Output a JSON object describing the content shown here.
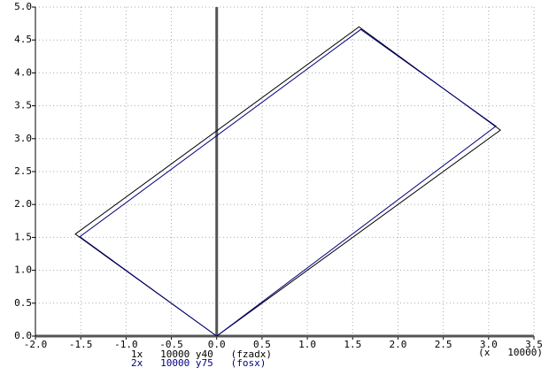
{
  "chart_data": {
    "type": "line",
    "x_label": "(x   10000)",
    "xlim": [
      -2.0,
      3.5
    ],
    "ylim": [
      0,
      5.0
    ],
    "xticks": [
      {
        "value": -2,
        "label": "-2.0"
      },
      -1.5,
      {
        "value": -1,
        "label": "-1.0"
      },
      -0.5,
      {
        "value": 0,
        "label": "0.0"
      },
      0.5,
      {
        "value": 1,
        "label": "1.0"
      },
      1.5,
      {
        "value": 2,
        "label": "2.0"
      },
      2.5,
      {
        "value": 3,
        "label": "3.0"
      },
      3.5
    ],
    "yticks": [
      {
        "value": 0,
        "label": "0.0"
      },
      0.5,
      {
        "value": 1,
        "label": "1.0"
      },
      1.5,
      {
        "value": 2,
        "label": "2.0"
      },
      2.5,
      {
        "value": 3,
        "label": "3.0"
      },
      3.5,
      {
        "value": 4,
        "label": "4.0"
      },
      4.5,
      {
        "value": 5,
        "label": "5.0"
      }
    ],
    "grid": true,
    "series": [
      {
        "name": "1x   10000 y40   (fzadx)",
        "color": "#000000",
        "x": [
          0,
          -1.56,
          1.57,
          3.13,
          0
        ],
        "values": [
          0,
          1.55,
          4.7,
          3.13,
          0
        ]
      },
      {
        "name": "2x   10000 y75   (fosx)",
        "color": "#000080",
        "x": [
          0,
          -1.51,
          1.59,
          3.08,
          0
        ],
        "values": [
          0,
          1.51,
          4.66,
          3.19,
          0
        ]
      }
    ]
  }
}
